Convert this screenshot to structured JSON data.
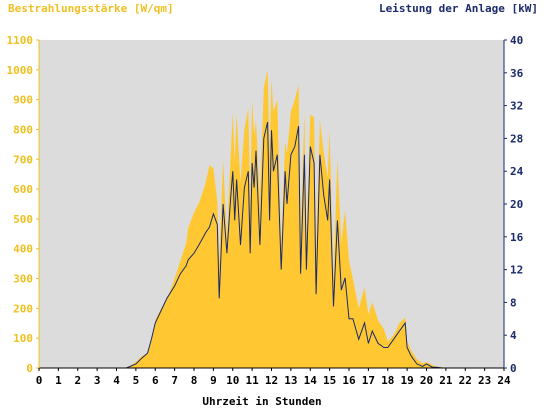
{
  "chart_data": {
    "type": "area",
    "y_left_label": "Bestrahlungsstärke [W/qm]",
    "y_right_label": "Leistung der Anlage [kW]",
    "xlabel": "Uhrzeit in Stunden",
    "x_ticks": [
      "0",
      "1",
      "2",
      "3",
      "4",
      "5",
      "6",
      "7",
      "8",
      "9",
      "10",
      "11",
      "12",
      "13",
      "14",
      "15",
      "16",
      "17",
      "18",
      "19",
      "20",
      "21",
      "22",
      "23",
      "24"
    ],
    "y_left_ticks": [
      "0",
      "100",
      "200",
      "300",
      "400",
      "500",
      "600",
      "700",
      "800",
      "900",
      "1000",
      "1100"
    ],
    "y_right_ticks": [
      "0",
      "4",
      "8",
      "12",
      "16",
      "20",
      "24",
      "28",
      "32",
      "36",
      "40"
    ],
    "xlim": [
      0,
      24
    ],
    "y_left_lim": [
      0,
      1100
    ],
    "y_right_lim": [
      0,
      40
    ],
    "colors": {
      "irradiance": "#ffc832",
      "power": "#1a2a6c",
      "plot_bg": "#dcdcdc",
      "left_axis": "#f0c020",
      "right_axis": "#1a2a6c"
    },
    "series": [
      {
        "name": "",
        "axis": "left",
        "x": [
          0,
          4.5,
          5.0,
          5.3,
          5.6,
          5.8,
          6.0,
          6.3,
          6.6,
          7.0,
          7.3,
          7.6,
          7.7,
          8.0,
          8.3,
          8.6,
          8.8,
          9.0,
          9.2,
          9.3,
          9.5,
          9.7,
          9.9,
          10.0,
          10.1,
          10.2,
          10.4,
          10.6,
          10.8,
          10.9,
          11.0,
          11.1,
          11.2,
          11.4,
          11.6,
          11.8,
          11.9,
          12.0,
          12.1,
          12.3,
          12.5,
          12.7,
          12.8,
          13.0,
          13.2,
          13.4,
          13.5,
          13.7,
          13.8,
          14.0,
          14.2,
          14.3,
          14.5,
          14.7,
          14.9,
          15.0,
          15.2,
          15.4,
          15.6,
          15.8,
          16.0,
          16.2,
          16.5,
          16.8,
          17.0,
          17.2,
          17.5,
          17.8,
          18.0,
          18.3,
          18.6,
          18.9,
          19.0,
          19.2,
          19.5,
          19.8,
          20.0,
          20.3,
          20.5,
          20.8,
          21.0,
          24
        ],
        "values": [
          0,
          0,
          20,
          40,
          50,
          100,
          160,
          200,
          230,
          300,
          360,
          420,
          470,
          520,
          560,
          620,
          680,
          670,
          560,
          350,
          700,
          430,
          720,
          860,
          690,
          850,
          620,
          800,
          870,
          560,
          900,
          780,
          830,
          560,
          940,
          1000,
          720,
          970,
          860,
          900,
          400,
          760,
          720,
          860,
          900,
          950,
          430,
          860,
          420,
          850,
          840,
          400,
          830,
          720,
          640,
          800,
          300,
          700,
          420,
          530,
          360,
          300,
          200,
          270,
          180,
          220,
          160,
          130,
          90,
          110,
          150,
          170,
          90,
          60,
          30,
          15,
          20,
          10,
          5,
          3,
          0,
          0
        ]
      },
      {
        "name": "",
        "axis": "right",
        "x": [
          0,
          4.5,
          5.0,
          5.3,
          5.6,
          5.8,
          6.0,
          6.3,
          6.6,
          7.0,
          7.3,
          7.6,
          7.7,
          8.0,
          8.3,
          8.6,
          8.8,
          9.0,
          9.2,
          9.3,
          9.5,
          9.7,
          9.9,
          10.0,
          10.1,
          10.2,
          10.4,
          10.6,
          10.8,
          10.9,
          11.0,
          11.1,
          11.2,
          11.4,
          11.6,
          11.8,
          11.9,
          12.0,
          12.1,
          12.3,
          12.5,
          12.7,
          12.8,
          13.0,
          13.2,
          13.4,
          13.5,
          13.7,
          13.8,
          14.0,
          14.2,
          14.3,
          14.5,
          14.7,
          14.9,
          15.0,
          15.2,
          15.4,
          15.6,
          15.8,
          16.0,
          16.2,
          16.5,
          16.8,
          17.0,
          17.2,
          17.5,
          17.8,
          18.0,
          18.3,
          18.6,
          18.9,
          19.0,
          19.2,
          19.5,
          19.8,
          20.0,
          20.3,
          20.5,
          20.8,
          21.0,
          24
        ],
        "values": [
          0,
          0,
          0.5,
          1.2,
          1.8,
          3.5,
          5.5,
          7.0,
          8.5,
          10.0,
          11.5,
          12.5,
          13.2,
          14.0,
          15.2,
          16.5,
          17.2,
          18.8,
          17.5,
          8.5,
          20.0,
          14.0,
          21.0,
          24.0,
          18.0,
          23.0,
          15.0,
          22.0,
          24.0,
          14.0,
          25.0,
          22.0,
          26.5,
          15.0,
          28.0,
          30.0,
          18.0,
          29.0,
          24.0,
          26.0,
          12.0,
          24.0,
          20.0,
          26.0,
          27.0,
          29.5,
          11.5,
          26.0,
          12.0,
          27.0,
          25.0,
          9.0,
          26.0,
          21.0,
          18.0,
          23.0,
          7.5,
          18.0,
          9.5,
          11.0,
          6.0,
          6.0,
          3.5,
          5.5,
          3.0,
          4.5,
          3.0,
          2.5,
          2.5,
          3.5,
          4.5,
          5.5,
          2.5,
          1.5,
          0.5,
          0.2,
          0.5,
          0.1,
          0.1,
          0,
          0,
          0
        ]
      }
    ]
  }
}
